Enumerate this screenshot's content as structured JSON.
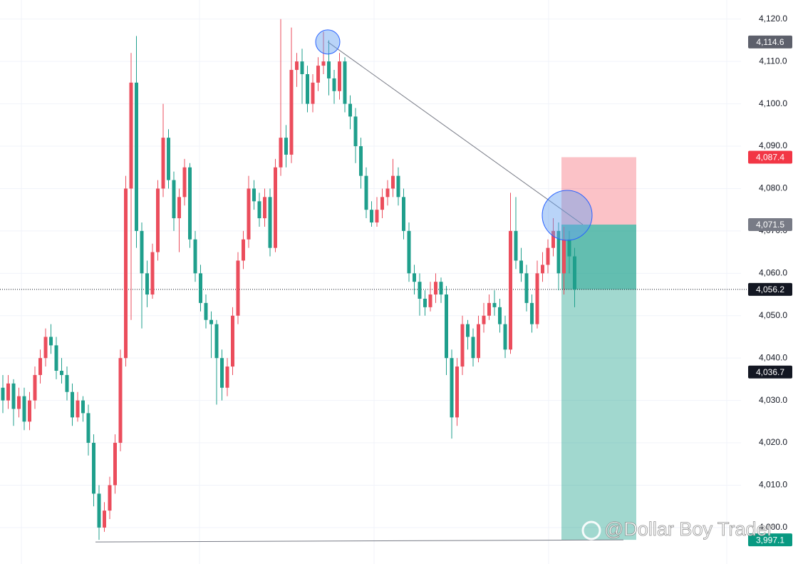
{
  "chart_data": {
    "type": "candlestick",
    "up_color": "#eb4d5c",
    "down_color": "#1f9f8c",
    "ylim": [
      3991.4,
      4124.5
    ],
    "yticks": [
      {
        "value": 4000,
        "label": "4,000.0"
      },
      {
        "value": 4010,
        "label": "4,010.0"
      },
      {
        "value": 4020,
        "label": "4,020.0"
      },
      {
        "value": 4030,
        "label": "4,030.0"
      },
      {
        "value": 4040,
        "label": "4,040.0"
      },
      {
        "value": 4050,
        "label": "4,050.0"
      },
      {
        "value": 4060,
        "label": "4,060.0"
      },
      {
        "value": 4070,
        "label": "4,070.0"
      },
      {
        "value": 4080,
        "label": "4,080.0"
      },
      {
        "value": 4090,
        "label": "4,090.0"
      },
      {
        "value": 4100,
        "label": "4,100.0"
      },
      {
        "value": 4110,
        "label": "4,110.0"
      },
      {
        "value": 4120,
        "label": "4,120.0"
      }
    ],
    "grid": true,
    "ohlc": [
      [
        4033,
        4036,
        4027,
        4030
      ],
      [
        4030,
        4036,
        4028,
        4034
      ],
      [
        4034,
        4035,
        4024,
        4028
      ],
      [
        4028,
        4033,
        4026,
        4031
      ],
      [
        4031,
        4033,
        4023,
        4025
      ],
      [
        4025,
        4032,
        4023,
        4030
      ],
      [
        4030,
        4038,
        4028,
        4036
      ],
      [
        4036,
        4042,
        4034,
        4040
      ],
      [
        4040,
        4047,
        4038,
        4045
      ],
      [
        4045,
        4048,
        4041,
        4043
      ],
      [
        4043,
        4045,
        4035,
        4037
      ],
      [
        4037,
        4040,
        4034,
        4036
      ],
      [
        4036,
        4038,
        4030,
        4032
      ],
      [
        4032,
        4034,
        4024,
        4026
      ],
      [
        4026,
        4032,
        4025,
        4030
      ],
      [
        4030,
        4031,
        4025,
        4027
      ],
      [
        4027,
        4029,
        4017,
        4020
      ],
      [
        4020,
        4022,
        4005,
        4008
      ],
      [
        4008,
        4010,
        3997.1,
        4000
      ],
      [
        4000,
        4006,
        3999,
        4004
      ],
      [
        4004,
        4012,
        4002,
        4010
      ],
      [
        4010,
        4022,
        4008,
        4020
      ],
      [
        4020,
        4042,
        4018,
        4040
      ],
      [
        4040,
        4083,
        4038,
        4080
      ],
      [
        4080,
        4112,
        4049,
        4105
      ],
      [
        4105,
        4116,
        4066,
        4070
      ],
      [
        4070,
        4072,
        4047,
        4060
      ],
      [
        4060,
        4063,
        4052,
        4055
      ],
      [
        4055,
        4067,
        4054,
        4065
      ],
      [
        4065,
        4082,
        4063,
        4080
      ],
      [
        4080,
        4100,
        4078,
        4092
      ],
      [
        4092,
        4094,
        4080,
        4082
      ],
      [
        4082,
        4084,
        4070,
        4073
      ],
      [
        4073,
        4080,
        4065,
        4078
      ],
      [
        4078,
        4087,
        4076,
        4085
      ],
      [
        4085,
        4086,
        4066,
        4068
      ],
      [
        4068,
        4070,
        4058,
        4060
      ],
      [
        4060,
        4062,
        4051,
        4053
      ],
      [
        4053,
        4055,
        4047,
        4049
      ],
      [
        4049,
        4051,
        4040,
        4048
      ],
      [
        4048,
        4049,
        4029,
        4040
      ],
      [
        4040,
        4042,
        4030,
        4033
      ],
      [
        4033,
        4040,
        4031,
        4038
      ],
      [
        4038,
        4052,
        4036,
        4050
      ],
      [
        4050,
        4065,
        4048,
        4063
      ],
      [
        4063,
        4070,
        4061,
        4068
      ],
      [
        4068,
        4083,
        4066,
        4080
      ],
      [
        4080,
        4082,
        4075,
        4077
      ],
      [
        4077,
        4079,
        4071,
        4073
      ],
      [
        4073,
        4080,
        4071,
        4078
      ],
      [
        4078,
        4080,
        4064,
        4066
      ],
      [
        4066,
        4087,
        4065,
        4085
      ],
      [
        4085,
        4120,
        4083,
        4092
      ],
      [
        4092,
        4095,
        4085,
        4088
      ],
      [
        4088,
        4118,
        4086,
        4108
      ],
      [
        4108,
        4112,
        4104,
        4110
      ],
      [
        4110,
        4113,
        4100,
        4107
      ],
      [
        4107,
        4109,
        4098,
        4100
      ],
      [
        4100,
        4107,
        4098,
        4105
      ],
      [
        4105,
        4111,
        4103,
        4109
      ],
      [
        4109,
        4117,
        4107,
        4110
      ],
      [
        4110,
        4115,
        4102,
        4106
      ],
      [
        4106,
        4108,
        4100,
        4103
      ],
      [
        4103,
        4112,
        4101,
        4110
      ],
      [
        4110,
        4111,
        4098,
        4100
      ],
      [
        4100,
        4102,
        4094,
        4097
      ],
      [
        4097,
        4099,
        4086,
        4090
      ],
      [
        4090,
        4092,
        4080,
        4083
      ],
      [
        4083,
        4085,
        4073,
        4075
      ],
      [
        4075,
        4077,
        4071,
        4072
      ],
      [
        4072,
        4078,
        4071,
        4075
      ],
      [
        4075,
        4080,
        4073,
        4078
      ],
      [
        4078,
        4082,
        4076,
        4080
      ],
      [
        4080,
        4087,
        4078,
        4083
      ],
      [
        4083,
        4085,
        4076,
        4078
      ],
      [
        4078,
        4080,
        4068,
        4070
      ],
      [
        4070,
        4072,
        4058,
        4060
      ],
      [
        4060,
        4062,
        4055,
        4058
      ],
      [
        4058,
        4060,
        4050,
        4054
      ],
      [
        4054,
        4056,
        4050,
        4052
      ],
      [
        4052,
        4058,
        4051,
        4055
      ],
      [
        4055,
        4060,
        4053,
        4058
      ],
      [
        4058,
        4059,
        4053,
        4055
      ],
      [
        4055,
        4057,
        4036,
        4040
      ],
      [
        4040,
        4042,
        4021,
        4026
      ],
      [
        4026,
        4040,
        4024,
        4038
      ],
      [
        4038,
        4050,
        4036,
        4048
      ],
      [
        4048,
        4049,
        4042,
        4045
      ],
      [
        4045,
        4047,
        4038,
        4040
      ],
      [
        4040,
        4050,
        4039,
        4048
      ],
      [
        4048,
        4053,
        4046,
        4050
      ],
      [
        4050,
        4055,
        4049,
        4053
      ],
      [
        4053,
        4056,
        4050,
        4052
      ],
      [
        4052,
        4054,
        4046,
        4048
      ],
      [
        4048,
        4050,
        4040,
        4042
      ],
      [
        4042,
        4079,
        4041,
        4070
      ],
      [
        4070,
        4078,
        4061,
        4063
      ],
      [
        4063,
        4066,
        4058,
        4060
      ],
      [
        4060,
        4062,
        4051,
        4053
      ],
      [
        4053,
        4055,
        4046,
        4048
      ],
      [
        4048,
        4063,
        4047,
        4060
      ],
      [
        4060,
        4065,
        4058,
        4062
      ],
      [
        4062,
        4068,
        4060,
        4066
      ],
      [
        4066,
        4073,
        4064,
        4070
      ],
      [
        4070,
        4072,
        4056,
        4060
      ],
      [
        4060,
        4071,
        4055,
        4068
      ],
      [
        4068,
        4070,
        4060,
        4064
      ],
      [
        4064,
        4066,
        4052,
        4056.2
      ]
    ],
    "tags": [
      {
        "value": 4114.6,
        "label": "4,114.6",
        "color": "#5d606b"
      },
      {
        "value": 4056.2,
        "label": "4,056.2",
        "color": "#131722"
      },
      {
        "value": 4036.7,
        "label": "4,036.7",
        "color": "#131722"
      }
    ],
    "position": {
      "stop": {
        "value": 4087.4,
        "label": "4,087.4",
        "color": "#f23645"
      },
      "entry": {
        "value": 4071.5,
        "label": "4,071.5",
        "color": "#787b86"
      },
      "target": {
        "value": 3997.1,
        "label": "3,997.1",
        "color": "#089981"
      }
    },
    "watermark": "@Dollar Boy Trader"
  }
}
